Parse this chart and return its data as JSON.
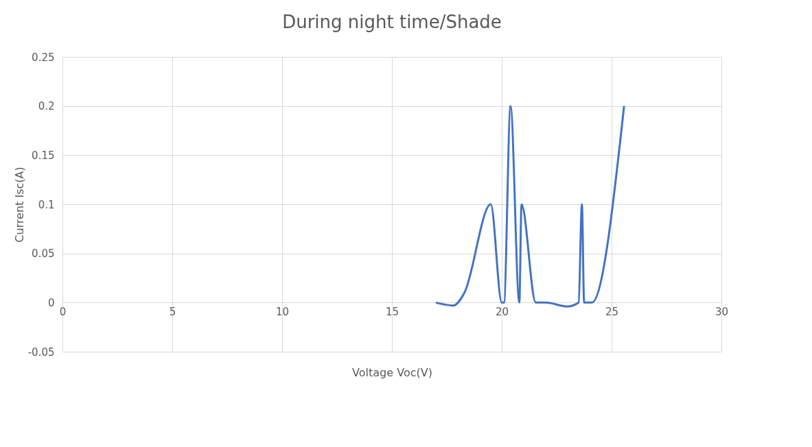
{
  "chart_data": {
    "type": "line",
    "title": "During night time/Shade",
    "xlabel": "Voltage Voc(V)",
    "ylabel": "Current Isc(A)",
    "x": [
      17.0,
      17.8,
      18.3,
      19.5,
      20.0,
      20.1,
      20.4,
      20.8,
      20.9,
      21.55,
      22.0,
      23.0,
      23.5,
      23.65,
      23.75,
      24.1,
      25.57
    ],
    "series": [
      {
        "color": "#4472c4",
        "values": [
          0,
          -0.003,
          0.01,
          0.1,
          0,
          0,
          0.2,
          0,
          0.1,
          0,
          0,
          -0.004,
          0,
          0.1,
          0,
          0,
          0.2
        ]
      }
    ],
    "xlim": [
      0,
      30
    ],
    "xticks": [
      0,
      5,
      10,
      15,
      20,
      25,
      30
    ],
    "ylim": [
      -0.05,
      0.25
    ],
    "yticks": [
      -0.05,
      0,
      0.05,
      0.1,
      0.15,
      0.2,
      0.25
    ],
    "grid": true,
    "legend": false,
    "marker": "none",
    "line_style": "solid"
  }
}
